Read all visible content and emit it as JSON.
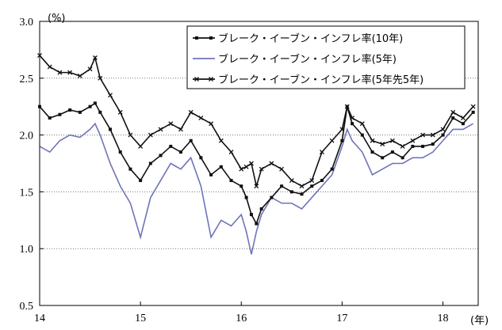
{
  "chart_data": {
    "type": "line",
    "y_unit": "(%)",
    "x_unit": "(年)",
    "ylim": [
      0.5,
      3.0
    ],
    "y_ticks": [
      "3.0",
      "2.5",
      "2.0",
      "1.5",
      "1.0",
      "0.5"
    ],
    "y_tick_values": [
      3.0,
      2.5,
      2.0,
      1.5,
      1.0,
      0.5
    ],
    "xlim": [
      2014.0,
      2018.35
    ],
    "x_ticks": [
      "14",
      "15",
      "16",
      "17",
      "18"
    ],
    "x_tick_values": [
      2014,
      2015,
      2016,
      2017,
      2018
    ],
    "grid": "horizontal-dotted",
    "legend_position": "top-right",
    "series": [
      {
        "name": "ブレーク・イーブン・インフレ率(10年)",
        "color": "#111111",
        "marker": "square",
        "x": [
          2014.0,
          2014.1,
          2014.2,
          2014.3,
          2014.4,
          2014.5,
          2014.55,
          2014.6,
          2014.7,
          2014.8,
          2014.9,
          2015.0,
          2015.1,
          2015.2,
          2015.3,
          2015.4,
          2015.5,
          2015.6,
          2015.7,
          2015.8,
          2015.9,
          2016.0,
          2016.05,
          2016.1,
          2016.15,
          2016.2,
          2016.3,
          2016.4,
          2016.5,
          2016.6,
          2016.7,
          2016.8,
          2016.9,
          2017.0,
          2017.05,
          2017.1,
          2017.2,
          2017.3,
          2017.4,
          2017.5,
          2017.6,
          2017.7,
          2017.8,
          2017.9,
          2018.0,
          2018.1,
          2018.2,
          2018.3
        ],
        "y": [
          2.25,
          2.15,
          2.18,
          2.22,
          2.2,
          2.25,
          2.28,
          2.2,
          2.05,
          1.85,
          1.7,
          1.6,
          1.75,
          1.82,
          1.9,
          1.85,
          1.95,
          1.8,
          1.65,
          1.72,
          1.6,
          1.55,
          1.45,
          1.3,
          1.22,
          1.35,
          1.45,
          1.55,
          1.5,
          1.48,
          1.55,
          1.6,
          1.7,
          1.95,
          2.25,
          2.1,
          2.0,
          1.85,
          1.8,
          1.85,
          1.8,
          1.9,
          1.9,
          1.92,
          2.0,
          2.15,
          2.1,
          2.2
        ]
      },
      {
        "name": "ブレーク・イーブン・インフレ率(5年)",
        "color": "#6e74b8",
        "marker": "none",
        "x": [
          2014.0,
          2014.1,
          2014.2,
          2014.3,
          2014.4,
          2014.5,
          2014.55,
          2014.6,
          2014.7,
          2014.8,
          2014.9,
          2015.0,
          2015.1,
          2015.2,
          2015.3,
          2015.4,
          2015.5,
          2015.6,
          2015.7,
          2015.8,
          2015.9,
          2016.0,
          2016.05,
          2016.1,
          2016.15,
          2016.2,
          2016.3,
          2016.4,
          2016.5,
          2016.6,
          2016.7,
          2016.8,
          2016.9,
          2017.0,
          2017.05,
          2017.1,
          2017.2,
          2017.3,
          2017.4,
          2017.5,
          2017.6,
          2017.7,
          2017.8,
          2017.9,
          2018.0,
          2018.1,
          2018.2,
          2018.3
        ],
        "y": [
          1.9,
          1.85,
          1.95,
          2.0,
          1.98,
          2.05,
          2.1,
          2.0,
          1.75,
          1.55,
          1.4,
          1.1,
          1.45,
          1.6,
          1.75,
          1.7,
          1.8,
          1.55,
          1.1,
          1.25,
          1.2,
          1.3,
          1.15,
          0.95,
          1.15,
          1.3,
          1.45,
          1.4,
          1.4,
          1.35,
          1.45,
          1.55,
          1.65,
          1.9,
          2.05,
          1.95,
          1.85,
          1.65,
          1.7,
          1.75,
          1.75,
          1.8,
          1.8,
          1.85,
          1.95,
          2.05,
          2.05,
          2.1
        ]
      },
      {
        "name": "ブレーク・イーブン・インフレ率(5年先5年)",
        "color": "#111111",
        "marker": "cross",
        "x": [
          2014.0,
          2014.1,
          2014.2,
          2014.3,
          2014.4,
          2014.5,
          2014.55,
          2014.6,
          2014.7,
          2014.8,
          2014.9,
          2015.0,
          2015.1,
          2015.2,
          2015.3,
          2015.4,
          2015.5,
          2015.6,
          2015.7,
          2015.8,
          2015.9,
          2016.0,
          2016.05,
          2016.1,
          2016.15,
          2016.2,
          2016.3,
          2016.4,
          2016.5,
          2016.6,
          2016.7,
          2016.8,
          2016.9,
          2017.0,
          2017.05,
          2017.1,
          2017.2,
          2017.3,
          2017.4,
          2017.5,
          2017.6,
          2017.7,
          2017.8,
          2017.9,
          2018.0,
          2018.1,
          2018.2,
          2018.3
        ],
        "y": [
          2.7,
          2.6,
          2.55,
          2.55,
          2.52,
          2.58,
          2.68,
          2.5,
          2.35,
          2.2,
          2.0,
          1.9,
          2.0,
          2.05,
          2.1,
          2.05,
          2.2,
          2.15,
          2.1,
          1.95,
          1.85,
          1.7,
          1.72,
          1.75,
          1.55,
          1.7,
          1.75,
          1.7,
          1.6,
          1.55,
          1.6,
          1.85,
          1.95,
          2.05,
          2.25,
          2.15,
          2.1,
          1.95,
          1.92,
          1.95,
          1.9,
          1.95,
          2.0,
          2.0,
          2.05,
          2.2,
          2.15,
          2.25
        ]
      }
    ]
  }
}
